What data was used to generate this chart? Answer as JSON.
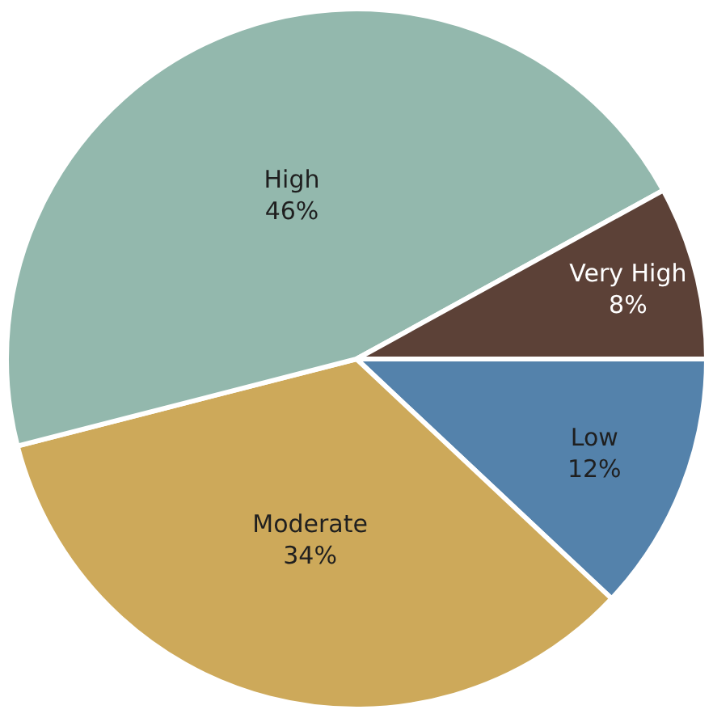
{
  "chart_data": {
    "type": "pie",
    "categories": [
      "Low",
      "Moderate",
      "High",
      "Very High"
    ],
    "values": [
      12,
      34,
      46,
      8
    ],
    "value_labels": [
      "12%",
      "34%",
      "46%",
      "8%"
    ],
    "colors": [
      "#5482ab",
      "#cda95a",
      "#93b8ad",
      "#5c4137"
    ],
    "legend": false
  }
}
